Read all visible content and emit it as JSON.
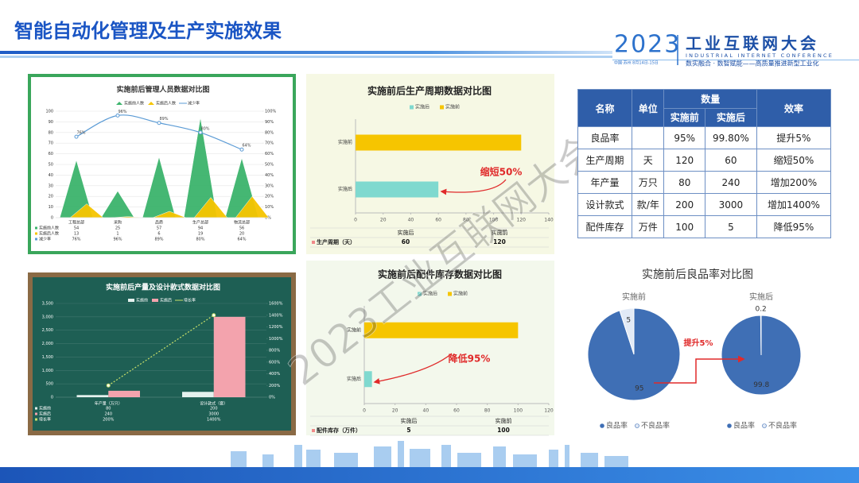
{
  "header": {
    "title": "智能自动化管理及生产实施效果",
    "logo_year": "2023",
    "logo_name": "工业互联网大会",
    "logo_en": "INDUSTRIAL INTERNET CONFERENCE",
    "logo_place": "中国·苏州 8月14日-15日",
    "logo_slogan": "数实融合 · 数智赋能——高质量推进新型工业化",
    "watermark": "2023工业互联网大会"
  },
  "table": {
    "header": [
      "名称",
      "单位",
      "数量",
      "效率"
    ],
    "subheader": [
      "实施前",
      "实施后"
    ],
    "rows": [
      {
        "name": "良品率",
        "before": "95%",
        "after": "99.80%",
        "effect": "提升5%"
      },
      {
        "name": "生产周期",
        "unit": "天",
        "before": 120,
        "after": 60,
        "effect": "缩短50%"
      },
      {
        "name": "年产量",
        "unit": "万只",
        "before": 80,
        "after": 240,
        "effect": "增加200%"
      },
      {
        "name": "设计款式",
        "unit": "款/年",
        "before": 200,
        "after": 3000,
        "effect": "增加1400%"
      },
      {
        "name": "配件库存",
        "unit": "万件",
        "before": 100,
        "after": 5,
        "effect": "降低95%"
      }
    ]
  },
  "chart_data": [
    {
      "type": "combo",
      "title": "实施前后管理人员数据对比图",
      "categories": [
        "工程总部",
        "采购",
        "品质",
        "生产总部",
        "物流总部"
      ],
      "series": [
        {
          "name": "实施前人数",
          "type": "triangle",
          "color": "#3cb46c",
          "values": [
            54,
            25,
            57,
            94,
            56
          ]
        },
        {
          "name": "实施后人数",
          "type": "triangle",
          "color": "#f6c500",
          "values": [
            13,
            1,
            6,
            19,
            20
          ]
        },
        {
          "name": "减少率",
          "type": "line",
          "axis": "y2",
          "color": "#5b9bd5",
          "values": [
            76,
            96,
            89,
            80,
            64
          ],
          "value_labels": [
            "76%",
            "96%",
            "89%",
            "80%",
            "64%"
          ]
        }
      ],
      "ylim": [
        0,
        100
      ],
      "yticks": [
        0,
        10,
        20,
        30,
        40,
        50,
        60,
        70,
        80,
        90,
        100
      ],
      "y2lim": [
        0,
        100
      ],
      "y2ticks": [
        {
          "value": 0,
          "label": "0%"
        },
        {
          "value": 10,
          "label": "10%"
        },
        {
          "value": 20,
          "label": "20%"
        },
        {
          "value": 30,
          "label": "30%"
        },
        {
          "value": 40,
          "label": "40%"
        },
        {
          "value": 50,
          "label": "50%"
        },
        {
          "value": 60,
          "label": "60%"
        },
        {
          "value": 70,
          "label": "70%"
        },
        {
          "value": 80,
          "label": "80%"
        },
        {
          "value": 90,
          "label": "90%"
        },
        {
          "value": 100,
          "label": "100%"
        }
      ],
      "grid": true
    },
    {
      "type": "hbar",
      "title": "实施前后生产周期数据对比图",
      "categories": [
        "实施后",
        "实施前"
      ],
      "colors": [
        "#7fd9cf",
        "#f6c500"
      ],
      "series": [
        {
          "name": "生产周期（天）",
          "values": [
            60,
            120
          ]
        }
      ],
      "xlim": [
        0,
        140
      ],
      "xticks": [
        0,
        20,
        40,
        60,
        80,
        100,
        120,
        140
      ],
      "annotation": "缩短50%"
    },
    {
      "type": "combo",
      "title": "实施前后产量及设计款式数据对比图",
      "categories": [
        "年产量（万只）",
        "设计款式（套）"
      ],
      "series": [
        {
          "name": "实施前",
          "type": "bar",
          "color": "#e4f1ee",
          "values": [
            80,
            200
          ]
        },
        {
          "name": "实施后",
          "type": "bar",
          "color": "#f3a3ad",
          "values": [
            240,
            3000
          ]
        },
        {
          "name": "增长率",
          "type": "line",
          "axis": "y2",
          "color": "#c9e06a",
          "values": [
            200,
            1400
          ],
          "value_labels": [
            "200%",
            "1400%"
          ]
        }
      ],
      "ylim": [
        0,
        3500
      ],
      "yticks": [
        0,
        500,
        {
          "value": 1000,
          "label": "1,000"
        },
        {
          "value": 1500,
          "label": "1,500"
        },
        {
          "value": 2000,
          "label": "2,000"
        },
        {
          "value": 2500,
          "label": "2,500"
        },
        {
          "value": 3000,
          "label": "3,000"
        },
        {
          "value": 3500,
          "label": "3,500"
        }
      ],
      "y2lim": [
        0,
        1600
      ],
      "y2ticks": [
        {
          "value": 0,
          "label": "0%"
        },
        {
          "value": 200,
          "label": "200%"
        },
        {
          "value": 400,
          "label": "400%"
        },
        {
          "value": 600,
          "label": "600%"
        },
        {
          "value": 800,
          "label": "800%"
        },
        {
          "value": 1000,
          "label": "1000%"
        },
        {
          "value": 1200,
          "label": "1200%"
        },
        {
          "value": 1400,
          "label": "1400%"
        },
        {
          "value": 1600,
          "label": "1600%"
        }
      ],
      "grid": true
    },
    {
      "type": "hbar",
      "title": "实施前后配件库存数据对比图",
      "categories": [
        "实施后",
        "实施前"
      ],
      "colors": [
        "#7fd9cf",
        "#f6c500"
      ],
      "series": [
        {
          "name": "配件库存（万件）",
          "values": [
            5,
            100
          ]
        }
      ],
      "xlim": [
        0,
        120
      ],
      "xticks": [
        0,
        20,
        40,
        60,
        80,
        100,
        120
      ],
      "annotation": "降低95%"
    },
    {
      "type": "pie",
      "title": "实施前后良品率对比图",
      "categories": [
        "良品率",
        "不良品率"
      ],
      "colors": [
        "#3f6fb5",
        "#e2eaf6"
      ],
      "series": [
        {
          "name": "实施前",
          "values": [
            95,
            5
          ]
        },
        {
          "name": "实施后",
          "values": [
            99.8,
            0.2
          ]
        }
      ],
      "annotation": "提升5%"
    }
  ]
}
